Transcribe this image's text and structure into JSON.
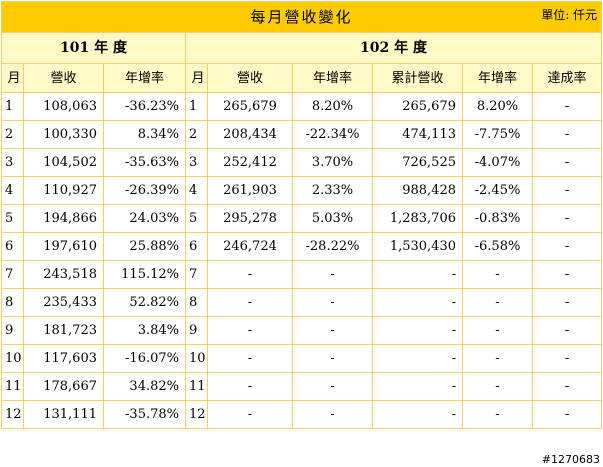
{
  "title": "每月營收變化",
  "unit": "單位: 仟元",
  "group_2012": "101 年 度",
  "group_2013": "102 年 度",
  "headers": {
    "month": "月",
    "revenue": "營收",
    "yoy": "年增率",
    "cumulative": "累計營收",
    "achievement": "達成率"
  },
  "rows": [
    {
      "m1": "1",
      "rev1": "108,063",
      "yoy1": "-36.23%",
      "m2": "1",
      "rev2": "265,679",
      "yoy2": "8.20%",
      "cum": "265,679",
      "cumyoy": "8.20%",
      "ach": "-"
    },
    {
      "m1": "2",
      "rev1": "100,330",
      "yoy1": "8.34%",
      "m2": "2",
      "rev2": "208,434",
      "yoy2": "-22.34%",
      "cum": "474,113",
      "cumyoy": "-7.75%",
      "ach": "-"
    },
    {
      "m1": "3",
      "rev1": "104,502",
      "yoy1": "-35.63%",
      "m2": "3",
      "rev2": "252,412",
      "yoy2": "3.70%",
      "cum": "726,525",
      "cumyoy": "-4.07%",
      "ach": "-"
    },
    {
      "m1": "4",
      "rev1": "110,927",
      "yoy1": "-26.39%",
      "m2": "4",
      "rev2": "261,903",
      "yoy2": "2.33%",
      "cum": "988,428",
      "cumyoy": "-2.45%",
      "ach": "-"
    },
    {
      "m1": "5",
      "rev1": "194,866",
      "yoy1": "24.03%",
      "m2": "5",
      "rev2": "295,278",
      "yoy2": "5.03%",
      "cum": "1,283,706",
      "cumyoy": "-0.83%",
      "ach": "-"
    },
    {
      "m1": "6",
      "rev1": "197,610",
      "yoy1": "25.88%",
      "m2": "6",
      "rev2": "246,724",
      "yoy2": "-28.22%",
      "cum": "1,530,430",
      "cumyoy": "-6.58%",
      "ach": "-"
    },
    {
      "m1": "7",
      "rev1": "243,518",
      "yoy1": "115.12%",
      "m2": "7",
      "rev2": "-",
      "yoy2": "-",
      "cum": "-",
      "cumyoy": "-",
      "ach": "-"
    },
    {
      "m1": "8",
      "rev1": "235,433",
      "yoy1": "52.82%",
      "m2": "8",
      "rev2": "-",
      "yoy2": "-",
      "cum": "-",
      "cumyoy": "-",
      "ach": "-"
    },
    {
      "m1": "9",
      "rev1": "181,723",
      "yoy1": "3.84%",
      "m2": "9",
      "rev2": "-",
      "yoy2": "-",
      "cum": "-",
      "cumyoy": "-",
      "ach": "-"
    },
    {
      "m1": "10",
      "rev1": "117,603",
      "yoy1": "-16.07%",
      "m2": "10",
      "rev2": "-",
      "yoy2": "-",
      "cum": "-",
      "cumyoy": "-",
      "ach": "-"
    },
    {
      "m1": "11",
      "rev1": "178,667",
      "yoy1": "34.82%",
      "m2": "11",
      "rev2": "-",
      "yoy2": "-",
      "cum": "-",
      "cumyoy": "-",
      "ach": "-"
    },
    {
      "m1": "12",
      "rev1": "131,111",
      "yoy1": "-35.78%",
      "m2": "12",
      "rev2": "-",
      "yoy2": "-",
      "cum": "-",
      "cumyoy": "-",
      "ach": "-"
    }
  ],
  "watermark": "#1270683"
}
